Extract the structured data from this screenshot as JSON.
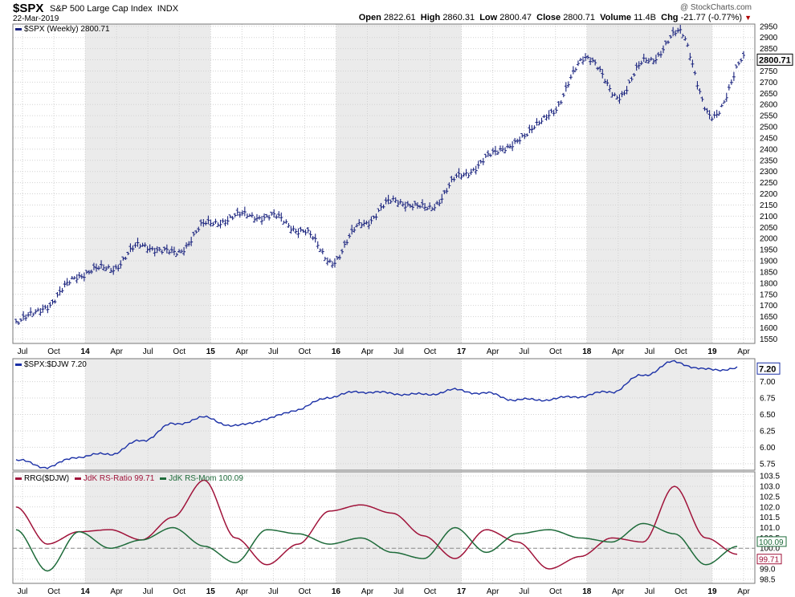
{
  "header": {
    "symbol": "$SPX",
    "name": "S&P 500 Large Cap Index",
    "exchange": "INDX",
    "date": "22-Mar-2019",
    "watermark": "@ StockCharts.com",
    "open_label": "Open",
    "open": "2822.61",
    "high_label": "High",
    "high": "2860.31",
    "low_label": "Low",
    "low": "2800.47",
    "close_label": "Close",
    "close": "2800.71",
    "volume_label": "Volume",
    "volume": "11.4B",
    "chg_label": "Chg",
    "chg": "-21.77 (-0.77%)",
    "chg_arrow": "▼"
  },
  "colors": {
    "price": "#1a237e",
    "ratio_line": "#1a2fa6",
    "rs_ratio": "#a0133a",
    "rs_mom": "#1e6b3a",
    "band": "#ebebeb",
    "grid": "#d2d2d2",
    "baseline": "#8a8a8a"
  },
  "x_axis_labels": [
    "Jul",
    "Oct",
    "14",
    "Apr",
    "Jul",
    "Oct",
    "15",
    "Apr",
    "Jul",
    "Oct",
    "16",
    "Apr",
    "Jul",
    "Oct",
    "17",
    "Apr",
    "Jul",
    "Oct",
    "18",
    "Apr",
    "Jul",
    "Oct",
    "19",
    "Apr"
  ],
  "x_axis_bold": [
    "14",
    "15",
    "16",
    "17",
    "18",
    "19"
  ],
  "panels": {
    "price": {
      "legend": "$SPX (Weekly) 2800.71",
      "last_value_label": "2800.71",
      "y_ticks": [
        "2950",
        "2900",
        "2850",
        "2800",
        "2750",
        "2700",
        "2650",
        "2600",
        "2550",
        "2500",
        "2450",
        "2400",
        "2350",
        "2300",
        "2250",
        "2200",
        "2150",
        "2100",
        "2050",
        "2000",
        "1950",
        "1900",
        "1850",
        "1800",
        "1750",
        "1700",
        "1650",
        "1600",
        "1550"
      ]
    },
    "ratio": {
      "legend": "$SPX:$DJW 7.20",
      "last_value_label": "7.20",
      "y_ticks": [
        "7.00",
        "6.75",
        "6.50",
        "6.25",
        "6.00",
        "5.75"
      ]
    },
    "rrg": {
      "legend_a": "RRG($DJW)",
      "legend_b": "JdK RS-Ratio 99.71",
      "legend_c": "JdK RS-Mom 100.09",
      "last_mom_label": "100.09",
      "last_ratio_label": "99.71",
      "y_ticks": [
        "103.5",
        "103.0",
        "102.5",
        "102.0",
        "101.5",
        "101.0",
        "100.5",
        "100.0",
        "99.5",
        "99.0",
        "98.5"
      ]
    }
  },
  "chart_data": [
    {
      "type": "line",
      "title": "$SPX (Weekly)",
      "subtype": "ohlc-bars",
      "x": [
        "2013-07",
        "2013-10",
        "2014-01",
        "2014-04",
        "2014-07",
        "2014-10",
        "2015-01",
        "2015-04",
        "2015-07",
        "2015-10",
        "2016-01",
        "2016-04",
        "2016-07",
        "2016-10",
        "2017-01",
        "2017-04",
        "2017-07",
        "2017-10",
        "2018-01",
        "2018-04",
        "2018-07",
        "2018-10",
        "2019-01",
        "2019-03"
      ],
      "series": [
        {
          "name": "$SPX",
          "values": [
            1620,
            1700,
            1840,
            1870,
            1970,
            1930,
            2060,
            2100,
            2100,
            2040,
            1900,
            2075,
            2170,
            2130,
            2270,
            2370,
            2450,
            2575,
            2820,
            2640,
            2800,
            2920,
            2530,
            2800.71
          ]
        }
      ],
      "ylim": [
        1530,
        2960
      ],
      "last": 2800.71
    },
    {
      "type": "line",
      "title": "$SPX:$DJW",
      "x": [
        "2013-07",
        "2013-10",
        "2014-01",
        "2014-04",
        "2014-07",
        "2014-10",
        "2015-01",
        "2015-04",
        "2015-07",
        "2015-10",
        "2016-01",
        "2016-04",
        "2016-07",
        "2016-10",
        "2017-01",
        "2017-04",
        "2017-07",
        "2017-10",
        "2018-01",
        "2018-04",
        "2018-07",
        "2018-10",
        "2019-01",
        "2019-03"
      ],
      "series": [
        {
          "name": "$SPX:$DJW",
          "values": [
            5.8,
            5.7,
            5.86,
            5.9,
            6.1,
            6.35,
            6.45,
            6.32,
            6.43,
            6.58,
            6.77,
            6.85,
            6.82,
            6.8,
            6.87,
            6.82,
            6.72,
            6.73,
            6.78,
            6.85,
            7.1,
            7.3,
            7.18,
            7.2
          ]
        }
      ],
      "ylim": [
        5.65,
        7.35
      ],
      "last": 7.2
    },
    {
      "type": "line",
      "title": "RRG($DJW)",
      "x": [
        "2013-07",
        "2013-10",
        "2014-01",
        "2014-04",
        "2014-07",
        "2014-10",
        "2015-01",
        "2015-04",
        "2015-07",
        "2015-10",
        "2016-01",
        "2016-04",
        "2016-07",
        "2016-10",
        "2017-01",
        "2017-04",
        "2017-07",
        "2017-10",
        "2018-01",
        "2018-04",
        "2018-07",
        "2018-10",
        "2019-01",
        "2019-03"
      ],
      "series": [
        {
          "name": "JdK RS-Ratio",
          "values": [
            102.0,
            100.2,
            100.8,
            100.9,
            100.4,
            101.5,
            103.3,
            100.5,
            99.2,
            100.2,
            101.8,
            102.1,
            101.7,
            100.6,
            99.5,
            100.9,
            100.3,
            99.0,
            99.6,
            100.5,
            100.3,
            103.0,
            100.5,
            99.71
          ]
        },
        {
          "name": "JdK RS-Mom",
          "values": [
            100.9,
            98.9,
            100.8,
            100.0,
            100.4,
            101.0,
            100.1,
            99.3,
            100.9,
            100.7,
            100.2,
            100.5,
            99.8,
            99.5,
            101.0,
            99.8,
            100.7,
            100.9,
            100.5,
            100.3,
            101.2,
            100.7,
            99.2,
            100.09
          ]
        }
      ],
      "ylim": [
        98.3,
        103.7
      ],
      "baseline": 100.0
    }
  ]
}
